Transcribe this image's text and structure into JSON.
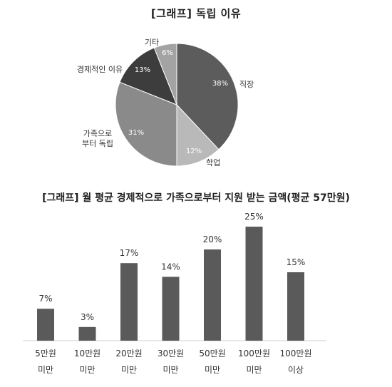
{
  "chart_data": [
    {
      "type": "pie",
      "title": "[그래프] 독립 이유",
      "slices": [
        {
          "label": "직장",
          "value": 38,
          "display": "38%",
          "color": "#5c5c5c"
        },
        {
          "label": "학업",
          "value": 12,
          "display": "12%",
          "color": "#b9b9b9"
        },
        {
          "label_lines": [
            "가족으로",
            "부터 독립"
          ],
          "value": 31,
          "display": "31%",
          "color": "#8a8a8a"
        },
        {
          "label": "경제적인 이유",
          "value": 13,
          "display": "13%",
          "color": "#3d3d3d"
        },
        {
          "label": "기타",
          "value": 6,
          "display": "6%",
          "color": "#a3a3a3"
        }
      ]
    },
    {
      "type": "bar",
      "title": "[그래프] 월 평균 경제적으로 가족으로부터 지원 받는 금액(평균 57만원)",
      "categories": [
        [
          "5만원",
          "미만"
        ],
        [
          "10만원",
          "미만"
        ],
        [
          "20만원",
          "미만"
        ],
        [
          "30만원",
          "미만"
        ],
        [
          "50만원",
          "미만"
        ],
        [
          "100만원",
          "미만"
        ],
        [
          "100만원",
          "이상"
        ]
      ],
      "values": [
        7,
        3,
        17,
        14,
        20,
        25,
        15
      ],
      "value_labels": [
        "7%",
        "3%",
        "17%",
        "14%",
        "20%",
        "25%",
        "15%"
      ],
      "ylim": [
        0,
        25
      ],
      "bar_color": "#5a5a5a"
    }
  ]
}
